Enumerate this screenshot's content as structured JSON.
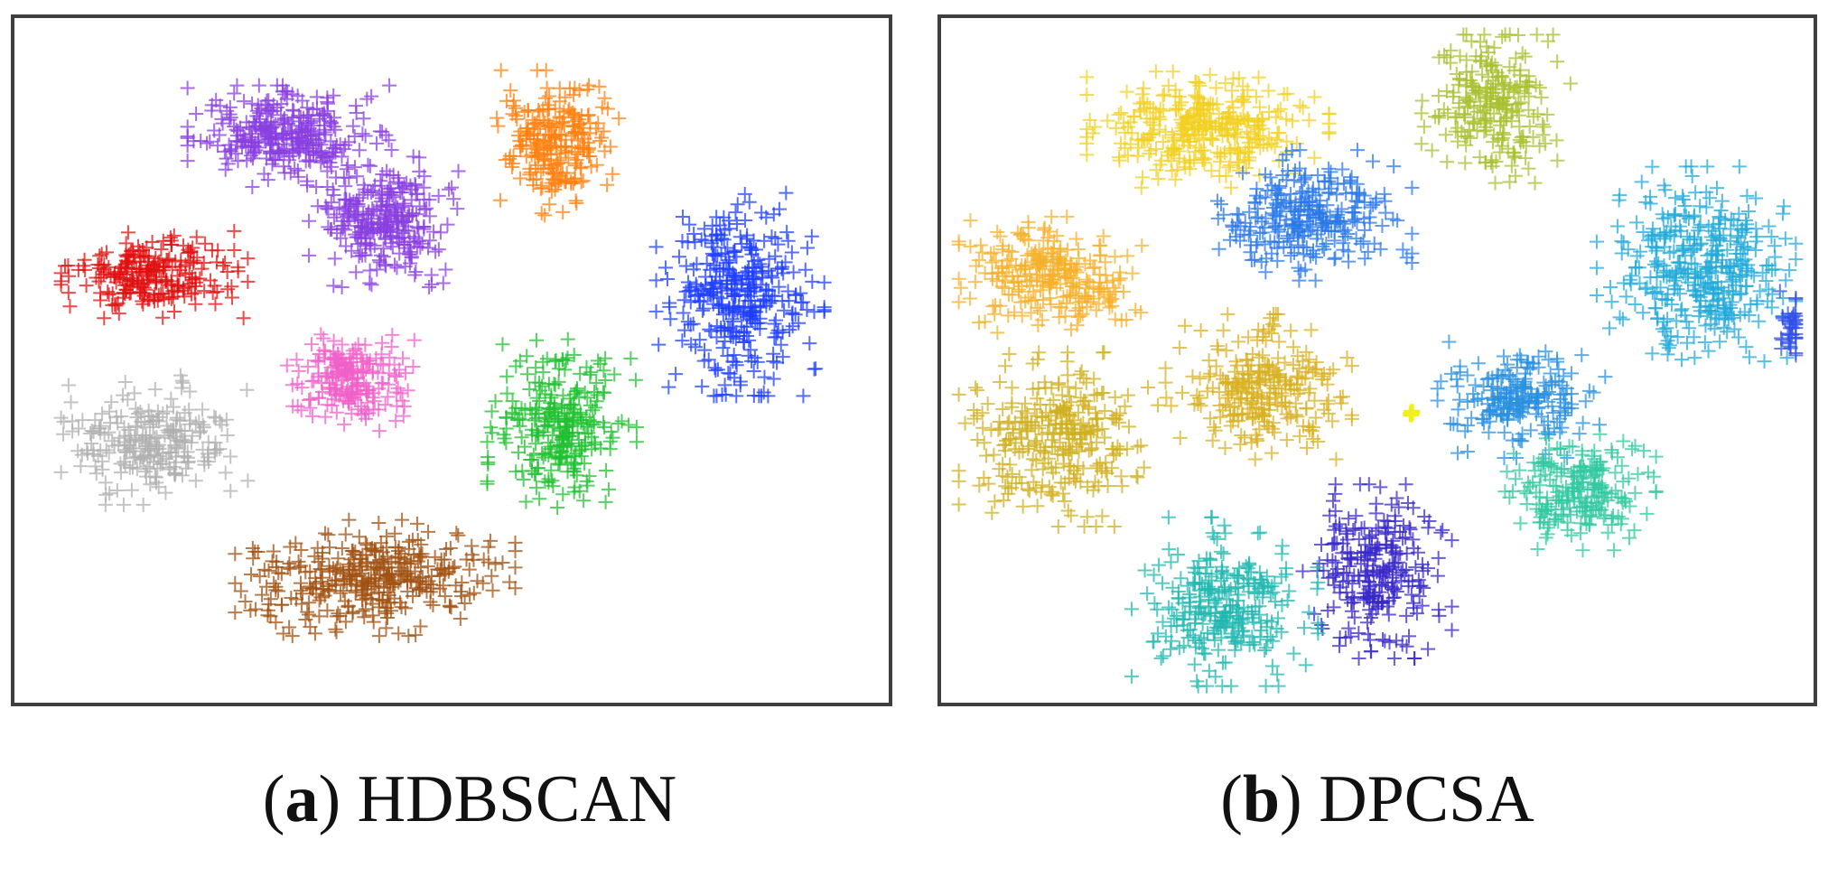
{
  "chart_data": [
    {
      "type": "scatter",
      "caption": {
        "prefix": "(",
        "letter": "a",
        "suffix": ") HDBSCAN"
      },
      "xlabel": "",
      "ylabel": "",
      "grid": false,
      "legend": "none",
      "marker": "plus",
      "xlim": [
        0,
        100
      ],
      "ylim": [
        0,
        100
      ],
      "clusters": [
        {
          "color": "#8a3fe0",
          "center": [
            31,
            84
          ],
          "spread": [
            11,
            7
          ],
          "count": 320
        },
        {
          "color": "#8a3fe0",
          "center": [
            42,
            71
          ],
          "spread": [
            8,
            9
          ],
          "count": 280
        },
        {
          "color": "#ff8010",
          "center": [
            62,
            83
          ],
          "spread": [
            7,
            10
          ],
          "count": 240
        },
        {
          "color": "#1f3fff",
          "center": [
            84,
            60
          ],
          "spread": [
            9,
            14
          ],
          "count": 360
        },
        {
          "color": "#e01010",
          "center": [
            15,
            63
          ],
          "spread": [
            10,
            6
          ],
          "count": 240
        },
        {
          "color": "#f060c8",
          "center": [
            38,
            47
          ],
          "spread": [
            7,
            7
          ],
          "count": 200
        },
        {
          "color": "#b0b0b0",
          "center": [
            15,
            38
          ],
          "spread": [
            10,
            9
          ],
          "count": 240
        },
        {
          "color": "#20c030",
          "center": [
            63,
            40
          ],
          "spread": [
            8,
            12
          ],
          "count": 280
        },
        {
          "color": "#a05010",
          "center": [
            41,
            17
          ],
          "spread": [
            15,
            8
          ],
          "count": 360
        }
      ]
    },
    {
      "type": "scatter",
      "caption": {
        "prefix": "(",
        "letter": "b",
        "suffix": ") DPCSA"
      },
      "xlabel": "",
      "ylabel": "",
      "grid": false,
      "legend": "none",
      "marker": "plus",
      "xlim": [
        0,
        100
      ],
      "ylim": [
        0,
        100
      ],
      "clusters": [
        {
          "color": "#f2d020",
          "center": [
            30,
            85
          ],
          "spread": [
            13,
            8
          ],
          "count": 320
        },
        {
          "color": "#a8c030",
          "center": [
            64,
            89
          ],
          "spread": [
            8,
            11
          ],
          "count": 240
        },
        {
          "color": "#2a78e8",
          "center": [
            42,
            72
          ],
          "spread": [
            11,
            9
          ],
          "count": 280
        },
        {
          "color": "#22aad8",
          "center": [
            88,
            64
          ],
          "spread": [
            11,
            14
          ],
          "count": 380
        },
        {
          "color": "#f5b02a",
          "center": [
            11,
            63
          ],
          "spread": [
            11,
            8
          ],
          "count": 260
        },
        {
          "color": "#d8b020",
          "center": [
            36,
            46
          ],
          "spread": [
            10,
            10
          ],
          "count": 260
        },
        {
          "color": "#d0b020",
          "center": [
            12,
            38
          ],
          "spread": [
            11,
            12
          ],
          "count": 300
        },
        {
          "color": "#2a90e0",
          "center": [
            67,
            44
          ],
          "spread": [
            9,
            8
          ],
          "count": 220
        },
        {
          "color": "#30c8a0",
          "center": [
            73,
            30
          ],
          "spread": [
            9,
            8
          ],
          "count": 220
        },
        {
          "color": "#3828c8",
          "center": [
            50,
            18
          ],
          "spread": [
            8,
            12
          ],
          "count": 260
        },
        {
          "color": "#20b8b0",
          "center": [
            32,
            13
          ],
          "spread": [
            10,
            12
          ],
          "count": 280
        },
        {
          "color": "#3050e8",
          "center": [
            99,
            55
          ],
          "spread": [
            2,
            5
          ],
          "count": 40
        },
        {
          "color": "#f0f020",
          "center": [
            54,
            42
          ],
          "spread": [
            0.4,
            0.4
          ],
          "count": 2
        }
      ]
    }
  ]
}
